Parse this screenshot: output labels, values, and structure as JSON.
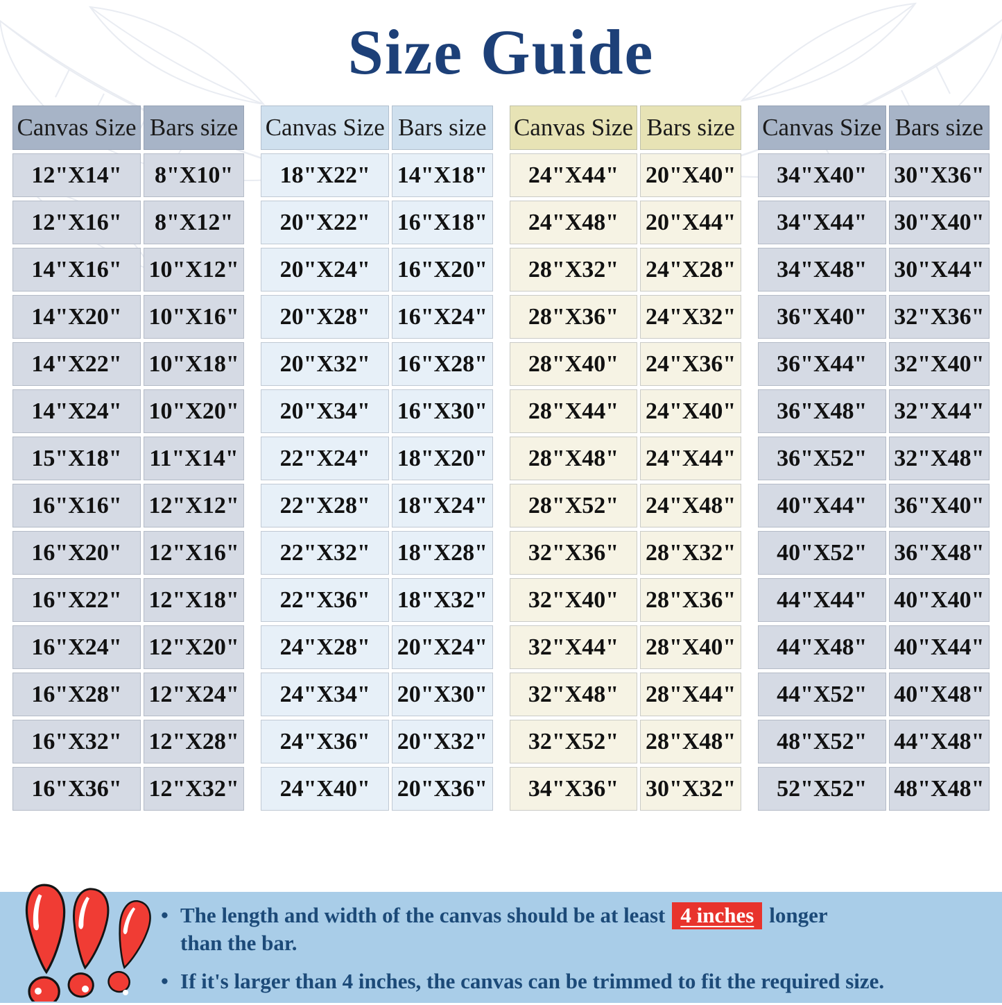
{
  "title": "Size Guide",
  "tables": [
    {
      "theme": "slate",
      "header": {
        "canvas": "Canvas Size",
        "bars": "Bars size"
      },
      "rows": [
        [
          "12\"X14\"",
          "8\"X10\""
        ],
        [
          "12\"X16\"",
          "8\"X12\""
        ],
        [
          "14\"X16\"",
          "10\"X12\""
        ],
        [
          "14\"X20\"",
          "10\"X16\""
        ],
        [
          "14\"X22\"",
          "10\"X18\""
        ],
        [
          "14\"X24\"",
          "10\"X20\""
        ],
        [
          "15\"X18\"",
          "11\"X14\""
        ],
        [
          "16\"X16\"",
          "12\"X12\""
        ],
        [
          "16\"X20\"",
          "12\"X16\""
        ],
        [
          "16\"X22\"",
          "12\"X18\""
        ],
        [
          "16\"X24\"",
          "12\"X20\""
        ],
        [
          "16\"X28\"",
          "12\"X24\""
        ],
        [
          "16\"X32\"",
          "12\"X28\""
        ],
        [
          "16\"X36\"",
          "12\"X32\""
        ]
      ]
    },
    {
      "theme": "blue",
      "header": {
        "canvas": "Canvas Size",
        "bars": "Bars size"
      },
      "rows": [
        [
          "18\"X22\"",
          "14\"X18\""
        ],
        [
          "20\"X22\"",
          "16\"X18\""
        ],
        [
          "20\"X24\"",
          "16\"X20\""
        ],
        [
          "20\"X28\"",
          "16\"X24\""
        ],
        [
          "20\"X32\"",
          "16\"X28\""
        ],
        [
          "20\"X34\"",
          "16\"X30\""
        ],
        [
          "22\"X24\"",
          "18\"X20\""
        ],
        [
          "22\"X28\"",
          "18\"X24\""
        ],
        [
          "22\"X32\"",
          "18\"X28\""
        ],
        [
          "22\"X36\"",
          "18\"X32\""
        ],
        [
          "24\"X28\"",
          "20\"X24\""
        ],
        [
          "24\"X34\"",
          "20\"X30\""
        ],
        [
          "24\"X36\"",
          "20\"X32\""
        ],
        [
          "24\"X40\"",
          "20\"X36\""
        ]
      ]
    },
    {
      "theme": "cream",
      "header": {
        "canvas": "Canvas Size",
        "bars": "Bars size"
      },
      "rows": [
        [
          "24\"X44\"",
          "20\"X40\""
        ],
        [
          "24\"X48\"",
          "20\"X44\""
        ],
        [
          "28\"X32\"",
          "24\"X28\""
        ],
        [
          "28\"X36\"",
          "24\"X32\""
        ],
        [
          "28\"X40\"",
          "24\"X36\""
        ],
        [
          "28\"X44\"",
          "24\"X40\""
        ],
        [
          "28\"X48\"",
          "24\"X44\""
        ],
        [
          "28\"X52\"",
          "24\"X48\""
        ],
        [
          "32\"X36\"",
          "28\"X32\""
        ],
        [
          "32\"X40\"",
          "28\"X36\""
        ],
        [
          "32\"X44\"",
          "28\"X40\""
        ],
        [
          "32\"X48\"",
          "28\"X44\""
        ],
        [
          "32\"X52\"",
          "28\"X48\""
        ],
        [
          "34\"X36\"",
          "30\"X32\""
        ]
      ]
    },
    {
      "theme": "slate",
      "header": {
        "canvas": "Canvas Size",
        "bars": "Bars size"
      },
      "rows": [
        [
          "34\"X40\"",
          "30\"X36\""
        ],
        [
          "34\"X44\"",
          "30\"X40\""
        ],
        [
          "34\"X48\"",
          "30\"X44\""
        ],
        [
          "36\"X40\"",
          "32\"X36\""
        ],
        [
          "36\"X44\"",
          "32\"X40\""
        ],
        [
          "36\"X48\"",
          "32\"X44\""
        ],
        [
          "36\"X52\"",
          "32\"X48\""
        ],
        [
          "40\"X44\"",
          "36\"X40\""
        ],
        [
          "40\"X52\"",
          "36\"X48\""
        ],
        [
          "44\"X44\"",
          "40\"X40\""
        ],
        [
          "44\"X48\"",
          "40\"X44\""
        ],
        [
          "44\"X52\"",
          "40\"X48\""
        ],
        [
          "48\"X52\"",
          "44\"X48\""
        ],
        [
          "52\"X52\"",
          "48\"X48\""
        ]
      ]
    }
  ],
  "notes": [
    {
      "bullet": "•",
      "pre": "The length and width of the canvas should be at least",
      "highlight": "4 inches",
      "post": "longer",
      "line2": "than the bar."
    },
    {
      "bullet": "•",
      "text": "If it's larger than 4 inches, the canvas can be trimmed to fit the required size."
    }
  ],
  "icons": {
    "bottom_left": "exclamation-marks-icon"
  },
  "colors": {
    "title": "#1d4078",
    "note_text": "#1c4a78",
    "highlight_bg": "#e8332c",
    "highlight_text": "#ffffff",
    "band_bg": "#a9cde8",
    "theme_slate_header": "#a7b4c7",
    "theme_slate_row": "#d5dae4",
    "theme_blue_header": "#cfe0ee",
    "theme_blue_row": "#e7f0f8",
    "theme_cream_header": "#e7e3b5",
    "theme_cream_row": "#f6f3e4",
    "icon_red": "#f03c34"
  }
}
